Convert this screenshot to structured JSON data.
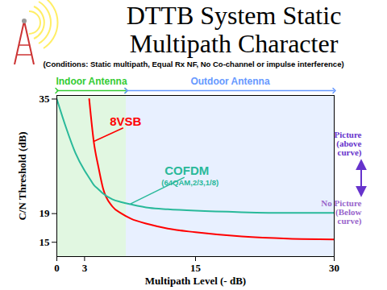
{
  "chart_data": {
    "type": "line",
    "title": "DTTB System Static Multipath Character",
    "subtitle": "(Conditions: Static multipath, Equal Rx NF, No Co-channel or impulse interference)",
    "x_label": "Multipath Level (- dB)",
    "y_label": "C/N Threshold (dB)",
    "x": [
      0,
      1,
      2,
      3,
      3.5,
      4,
      4.5,
      5,
      6,
      7,
      8,
      10,
      12,
      15,
      20,
      25,
      30
    ],
    "series": [
      {
        "name": "8VSB",
        "color": "#ff0000",
        "values": [
          null,
          null,
          null,
          null,
          35,
          29,
          25.5,
          22.5,
          20,
          19,
          18.3,
          17.5,
          16.9,
          16.4,
          15.8,
          15.5,
          15.4
        ]
      },
      {
        "name": "COFDM",
        "detail": "(64QAM,2/3,1/8)",
        "color": "#29b99a",
        "values": [
          35,
          31,
          27.5,
          25,
          24,
          23,
          22.4,
          21.8,
          21,
          20.6,
          20.3,
          19.8,
          19.6,
          19.4,
          19.2,
          19.1,
          19.1
        ]
      }
    ],
    "xlim": [
      0,
      30
    ],
    "ylim": [
      13,
      35.5
    ],
    "xticks": [
      0,
      3,
      15,
      30
    ],
    "yticks": [
      15,
      19,
      35
    ],
    "grid": false,
    "regions": [
      {
        "label": "Indoor Antenna",
        "x": [
          0,
          7.5
        ],
        "color": "#33cc33"
      },
      {
        "label": "Outdoor Antenna",
        "x": [
          7.5,
          30
        ],
        "color": "#6699ff"
      }
    ],
    "annotations": [
      {
        "text": "Picture (above curve)",
        "color": "#6633cc"
      },
      {
        "text": "No Picture (Below curve)",
        "color": "#9966cc"
      }
    ]
  }
}
